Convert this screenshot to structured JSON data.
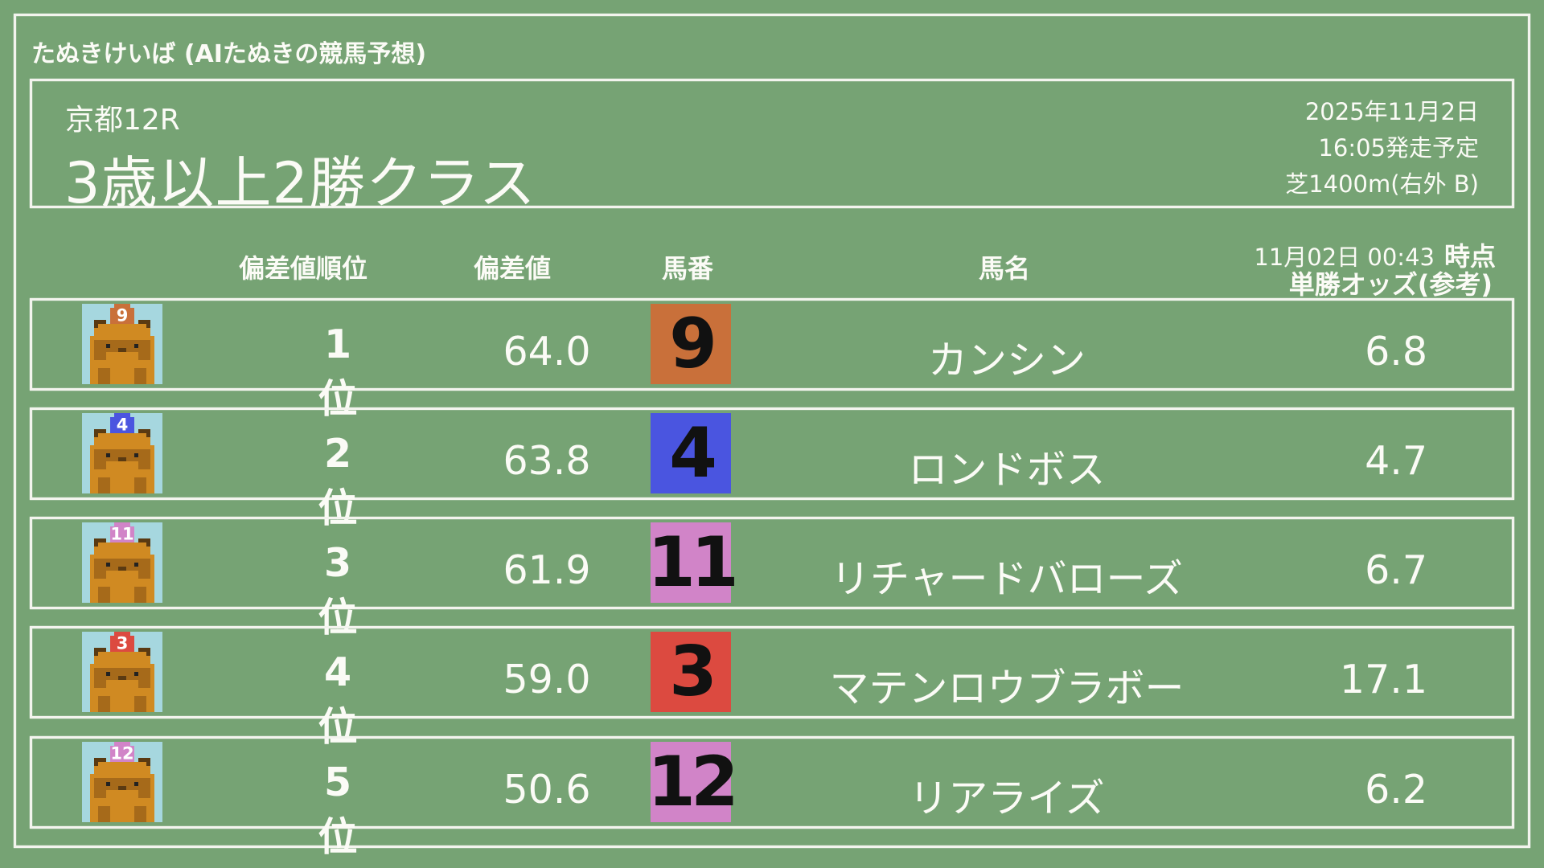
{
  "site_title": "たぬきけいば (AIたぬきの競馬予想)",
  "race": {
    "venue": "京都12R",
    "name": "3歳以上2勝クラス",
    "date": "2025年11月2日",
    "post_time": "16:05発走予定",
    "course": "芝1400m(右外 B)"
  },
  "columns": {
    "rank": "偏差値順位",
    "score": "偏差値",
    "number": "馬番",
    "name": "馬名",
    "odds_time": "11月02日 00:43",
    "odds_time_suffix": "時点",
    "odds": "単勝オッズ(参考)"
  },
  "colors": {
    "background": "#76a374",
    "chalk": "#f3f4ee"
  },
  "rows": [
    {
      "rank": "1位",
      "score": "64.0",
      "number": "9",
      "name": "カンシン",
      "odds": "6.8",
      "color": "#c9703a",
      "icon": "tanuki-icon"
    },
    {
      "rank": "2位",
      "score": "63.8",
      "number": "4",
      "name": "ロンドボス",
      "odds": "4.7",
      "color": "#4a55e0",
      "icon": "tanuki-icon"
    },
    {
      "rank": "3位",
      "score": "61.9",
      "number": "11",
      "name": "リチャードバローズ",
      "odds": "6.7",
      "color": "#d184c8",
      "icon": "tanuki-icon"
    },
    {
      "rank": "4位",
      "score": "59.0",
      "number": "3",
      "name": "マテンロウブラボー",
      "odds": "17.1",
      "color": "#dc4a40",
      "icon": "tanuki-icon"
    },
    {
      "rank": "5位",
      "score": "50.6",
      "number": "12",
      "name": "リアライズ",
      "odds": "6.2",
      "color": "#d184c8",
      "icon": "tanuki-icon"
    }
  ]
}
